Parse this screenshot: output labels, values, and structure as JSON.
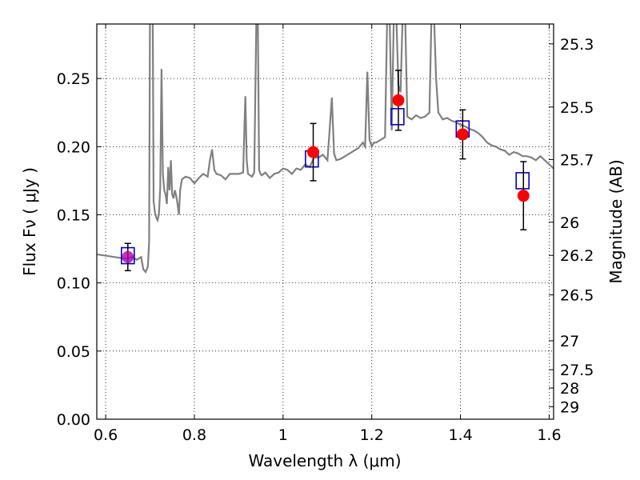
{
  "chart_data": {
    "type": "scatter",
    "xlabel": "Wavelength  λ (μm)",
    "ylabel": "Flux  Fν  ( μJy )",
    "y2label": "Magnitude (AB)",
    "xlim": [
      0.58,
      1.61
    ],
    "ylim": [
      0.0,
      0.29
    ],
    "grid": true,
    "x_ticks": [
      0.6,
      0.8,
      1.0,
      1.2,
      1.4,
      1.6
    ],
    "x_tick_labels": [
      "0.6",
      "0.8",
      "1",
      "1.2",
      "1.4",
      "1.6"
    ],
    "y_ticks": [
      0.0,
      0.05,
      0.1,
      0.15,
      0.2,
      0.25
    ],
    "y_tick_labels": [
      "0.00",
      "0.05",
      "0.10",
      "0.15",
      "0.20",
      "0.25"
    ],
    "y2_ticks": [
      "25.3",
      "25.5",
      "25.7",
      "26",
      "26.2",
      "26.5",
      "27",
      "27.5",
      "28",
      "29"
    ],
    "series": [
      {
        "kind": "line",
        "color": "#808080",
        "x": [
          0.58,
          0.6,
          0.62,
          0.64,
          0.65,
          0.66,
          0.67,
          0.68,
          0.685,
          0.69,
          0.695,
          0.698,
          0.7,
          0.703,
          0.706,
          0.708,
          0.711,
          0.714,
          0.717,
          0.72,
          0.723,
          0.726,
          0.729,
          0.732,
          0.735,
          0.738,
          0.741,
          0.744,
          0.747,
          0.75,
          0.753,
          0.756,
          0.759,
          0.762,
          0.765,
          0.768,
          0.772,
          0.78,
          0.79,
          0.8,
          0.81,
          0.82,
          0.83,
          0.835,
          0.84,
          0.845,
          0.85,
          0.86,
          0.87,
          0.88,
          0.89,
          0.9,
          0.91,
          0.915,
          0.918,
          0.921,
          0.93,
          0.935,
          0.94,
          0.943,
          0.946,
          0.949,
          0.952,
          0.96,
          0.97,
          0.98,
          0.99,
          1.0,
          1.01,
          1.02,
          1.03,
          1.04,
          1.05,
          1.06,
          1.07,
          1.08,
          1.09,
          1.1,
          1.105,
          1.11,
          1.115,
          1.12,
          1.13,
          1.14,
          1.15,
          1.16,
          1.17,
          1.18,
          1.185,
          1.19,
          1.195,
          1.2,
          1.205,
          1.21,
          1.22,
          1.23,
          1.235,
          1.24,
          1.245,
          1.25,
          1.255,
          1.26,
          1.265,
          1.27,
          1.275,
          1.28,
          1.29,
          1.3,
          1.31,
          1.32,
          1.33,
          1.335,
          1.34,
          1.345,
          1.35,
          1.36,
          1.37,
          1.38,
          1.39,
          1.4,
          1.41,
          1.42,
          1.43,
          1.44,
          1.45,
          1.46,
          1.47,
          1.48,
          1.49,
          1.5,
          1.51,
          1.52,
          1.53,
          1.54,
          1.55,
          1.56,
          1.57,
          1.58,
          1.59,
          1.6,
          1.61
        ],
        "y": [
          0.121,
          0.12,
          0.119,
          0.118,
          0.118,
          0.119,
          0.117,
          0.119,
          0.11,
          0.108,
          0.112,
          0.13,
          0.29,
          0.29,
          0.29,
          0.16,
          0.152,
          0.148,
          0.146,
          0.15,
          0.17,
          0.257,
          0.18,
          0.168,
          0.165,
          0.158,
          0.185,
          0.168,
          0.19,
          0.165,
          0.162,
          0.168,
          0.164,
          0.158,
          0.15,
          0.168,
          0.176,
          0.178,
          0.177,
          0.173,
          0.177,
          0.18,
          0.178,
          0.19,
          0.198,
          0.183,
          0.18,
          0.179,
          0.176,
          0.18,
          0.18,
          0.18,
          0.181,
          0.237,
          0.19,
          0.18,
          0.178,
          0.181,
          0.29,
          0.29,
          0.183,
          0.18,
          0.179,
          0.181,
          0.177,
          0.18,
          0.181,
          0.184,
          0.183,
          0.18,
          0.184,
          0.183,
          0.187,
          0.185,
          0.192,
          0.192,
          0.194,
          0.19,
          0.212,
          0.236,
          0.195,
          0.19,
          0.191,
          0.193,
          0.195,
          0.197,
          0.199,
          0.203,
          0.2,
          0.255,
          0.205,
          0.2,
          0.203,
          0.203,
          0.205,
          0.207,
          0.29,
          0.29,
          0.212,
          0.29,
          0.29,
          0.245,
          0.24,
          0.29,
          0.29,
          0.222,
          0.22,
          0.223,
          0.221,
          0.222,
          0.225,
          0.29,
          0.29,
          0.25,
          0.225,
          0.22,
          0.221,
          0.219,
          0.218,
          0.216,
          0.215,
          0.213,
          0.212,
          0.21,
          0.207,
          0.203,
          0.201,
          0.2,
          0.198,
          0.197,
          0.194,
          0.196,
          0.195,
          0.193,
          0.193,
          0.192,
          0.19,
          0.193,
          0.19,
          0.187,
          0.184
        ]
      },
      {
        "kind": "open-squares",
        "color": "#0000cc",
        "x": [
          0.65,
          1.065,
          1.258,
          1.405,
          1.54
        ],
        "y": [
          0.12,
          0.191,
          0.222,
          0.213,
          0.175
        ]
      },
      {
        "kind": "points-with-errorbars",
        "color": "#ff0000",
        "x": [
          0.65,
          1.068,
          1.26,
          1.405,
          1.542
        ],
        "y": [
          0.119,
          0.196,
          0.234,
          0.209,
          0.164
        ],
        "yerr": [
          0.01,
          0.021,
          0.022,
          0.018,
          0.025
        ]
      }
    ]
  }
}
